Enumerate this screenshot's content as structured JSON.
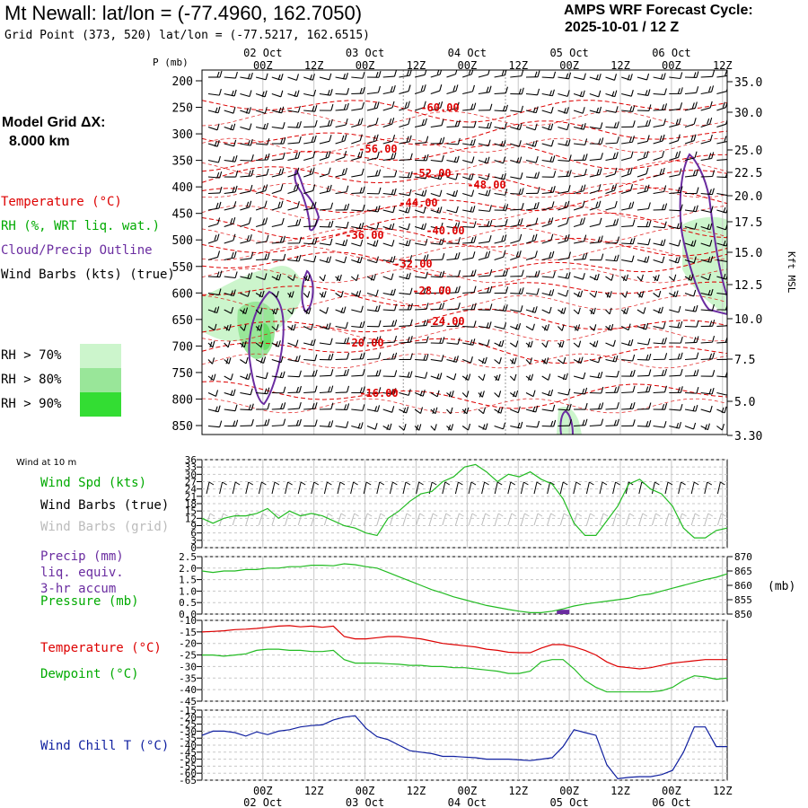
{
  "header": {
    "title": "Mt Newall:  lat/lon = (-77.4960, 162.7050)",
    "subtitle": "Grid Point (373, 520) lat/lon = (-77.5217, 162.6515)",
    "cycle_line1": "AMPS WRF Forecast Cycle:",
    "cycle_line2": "2025-10-01 / 12  Z"
  },
  "colors": {
    "temperature": "#dd0000",
    "rh": "#00aa00",
    "cloud_outline": "#6a2ca0",
    "wind_barbs": "#000000",
    "wind_barbs_grid": "#bbbbbb",
    "rh70": "#ccf5cc",
    "rh80": "#99e699",
    "rh90": "#33dd33",
    "wind_chill": "#1020a0",
    "grid": "#c8c8c8"
  },
  "left_panel": {
    "model_grid_line1": "Model Grid ΔX:",
    "model_grid_line2": "8.000 km",
    "legend_temperature": "Temperature (°C)",
    "legend_rh": "RH (%, WRT liq. wat.)",
    "legend_cloud": "Cloud/Precip Outline",
    "legend_wind": "Wind Barbs (kts) (true)",
    "rh_thresholds": [
      "RH > 70%",
      "RH > 80%",
      "RH > 90%"
    ]
  },
  "time_axis": {
    "hours_labels": [
      "00Z",
      "12Z",
      "00Z",
      "12Z",
      "00Z",
      "12Z",
      "00Z",
      "12Z",
      "00Z",
      "12Z"
    ],
    "date_labels": [
      "02 Oct",
      "03 Oct",
      "04 Oct",
      "05 Oct",
      "06 Oct"
    ]
  },
  "chart_data": [
    {
      "type": "heatmap",
      "title": "",
      "ylabel": "P (mb)",
      "y2label": "Kft MSL",
      "pressure_levels": [
        200,
        250,
        300,
        350,
        400,
        450,
        500,
        550,
        600,
        650,
        700,
        750,
        800,
        850
      ],
      "height_kft_labels": [
        "35.0",
        "30.0",
        "25.0",
        "22.5",
        "20.0",
        "17.5",
        "15.0",
        "12.5",
        "10.0",
        "7.5",
        "5.0",
        "3.30"
      ],
      "temperature_contours": [
        "-60.00",
        "-56.00",
        "-52.00",
        "-48.00",
        "-44.00",
        "-40.00",
        "-36.00",
        "-32.00",
        "-28.00",
        "-24.00",
        "-20.00",
        "-16.00"
      ],
      "grid": true
    },
    {
      "type": "line",
      "label": "Wind at 10 m",
      "series": [
        {
          "name": "Wind Spd (kts)",
          "values": [
            12,
            10,
            12,
            13,
            13,
            14,
            16,
            12,
            15,
            13,
            14,
            13,
            11,
            9,
            8,
            6,
            5,
            12,
            15,
            19,
            22,
            23,
            27,
            29,
            33,
            34,
            31,
            27,
            30,
            29,
            31,
            28,
            26,
            20,
            10,
            5,
            5,
            11,
            17,
            26,
            28,
            24,
            22,
            17,
            8,
            4,
            4,
            7,
            8
          ]
        }
      ],
      "legend": [
        "Wind Spd (kts)",
        "Wind Barbs (true)",
        "Wind Barbs (grid)"
      ],
      "yticks": [
        "36",
        "33",
        "30",
        "27",
        "24",
        "21",
        "18",
        "15",
        "12",
        "9",
        "6",
        "3",
        "0"
      ],
      "ylim": [
        0,
        36
      ]
    },
    {
      "type": "line",
      "legend": [
        "Precip (mm)",
        "liq. equiv.",
        "3-hr accum",
        "Pressure (mb)"
      ],
      "series": [
        {
          "name": "Pressure (mb)",
          "values": [
            865,
            864.5,
            865,
            865,
            865.5,
            865.5,
            866,
            866,
            866.5,
            866.5,
            867,
            867,
            866.8,
            867.5,
            867.2,
            866.5,
            866,
            864.5,
            863,
            861.5,
            860,
            858.5,
            857.3,
            856,
            855,
            854,
            853,
            852.3,
            851.6,
            851,
            850.5,
            850.5,
            851,
            851.8,
            852.8,
            853.5,
            854,
            854.5,
            855,
            855.5,
            856.5,
            857,
            858,
            859,
            860,
            861,
            862,
            862.8,
            864
          ]
        },
        {
          "name": "Precip (mm)",
          "values": [
            0,
            0,
            0,
            0,
            0,
            0,
            0,
            0,
            0,
            0,
            0,
            0,
            0,
            0,
            0,
            0,
            0,
            0,
            0,
            0,
            0,
            0,
            0,
            0,
            0,
            0,
            0,
            0,
            0,
            0,
            0,
            0,
            0,
            0.15,
            0,
            0,
            0,
            0,
            0,
            0,
            0,
            0,
            0,
            0,
            0,
            0,
            0,
            0,
            0
          ]
        }
      ],
      "yticks_left": [
        "2.5",
        "2.0",
        "1.5",
        "1.0",
        "0.5",
        "0.0"
      ],
      "yticks_right": [
        "870",
        "865",
        "860",
        "855",
        "850"
      ],
      "y2label": "(mb)",
      "ylim": [
        0,
        2.5
      ],
      "y2lim": [
        850,
        870
      ]
    },
    {
      "type": "line",
      "series": [
        {
          "name": "Temperature (°C)",
          "values": [
            -15,
            -14.8,
            -14.5,
            -14,
            -13.8,
            -13.5,
            -13,
            -12.5,
            -12.3,
            -12.8,
            -12.5,
            -13,
            -12.5,
            -17,
            -18,
            -18,
            -17.5,
            -17,
            -17,
            -17.5,
            -18,
            -19,
            -20,
            -20.5,
            -21,
            -21.5,
            -22.5,
            -23,
            -23.8,
            -24,
            -24,
            -22,
            -20.5,
            -20.5,
            -21.5,
            -23,
            -25,
            -28,
            -30,
            -30.5,
            -31,
            -30.5,
            -29.5,
            -28.5,
            -28,
            -27.5,
            -27,
            -27,
            -27
          ]
        },
        {
          "name": "Dewpoint (°C)",
          "values": [
            -25,
            -25,
            -25.5,
            -25,
            -24.5,
            -23,
            -22.5,
            -22.5,
            -23,
            -23,
            -23.5,
            -23.5,
            -23,
            -27,
            -28.5,
            -28.5,
            -28.5,
            -28.8,
            -29,
            -29.5,
            -29.5,
            -30,
            -30,
            -30.5,
            -30.5,
            -31,
            -31.5,
            -32,
            -33,
            -33,
            -32,
            -28,
            -27,
            -27,
            -31,
            -36,
            -39,
            -41,
            -41,
            -41,
            -41,
            -41,
            -40.5,
            -39,
            -36,
            -34,
            -34.5,
            -35.5,
            -35
          ]
        }
      ],
      "yticks": [
        "-10",
        "-15",
        "-20",
        "-25",
        "-30",
        "-35",
        "-40",
        "-45"
      ],
      "ylim": [
        -45,
        -10
      ]
    },
    {
      "type": "line",
      "series": [
        {
          "name": "Wind Chill T (°C)",
          "values": [
            -33,
            -30,
            -30,
            -31,
            -33.5,
            -30.5,
            -32.5,
            -30,
            -29,
            -27,
            -26,
            -25.5,
            -22,
            -20,
            -19,
            -28,
            -34,
            -36,
            -40,
            -44,
            -45,
            -46,
            -48,
            -48,
            -48.5,
            -49,
            -50,
            -50,
            -50,
            -50.5,
            -51,
            -50,
            -49,
            -41,
            -29,
            -31,
            -33,
            -54,
            -64,
            -63,
            -62.5,
            -62.5,
            -61,
            -58,
            -45,
            -27,
            -27,
            -41,
            -41
          ]
        }
      ],
      "yticks": [
        "-15",
        "-20",
        "-25",
        "-30",
        "-35",
        "-40",
        "-45",
        "-50",
        "-55",
        "-60",
        "-65"
      ],
      "ylim": [
        -65,
        -15
      ]
    }
  ],
  "lower_legends": {
    "wind_at_10m": "Wind at 10 m",
    "wind_spd": "Wind Spd (kts)",
    "wind_barbs_true": "Wind Barbs (true)",
    "wind_barbs_grid": "Wind Barbs (grid)",
    "precip": "Precip (mm)",
    "liq_equiv": "liq. equiv.",
    "accum": "3-hr accum",
    "pressure": "Pressure (mb)",
    "pressure_unit": "(mb)",
    "temperature": "Temperature (°C)",
    "dewpoint": "Dewpoint (°C)",
    "wind_chill": "Wind Chill T (°C)"
  }
}
